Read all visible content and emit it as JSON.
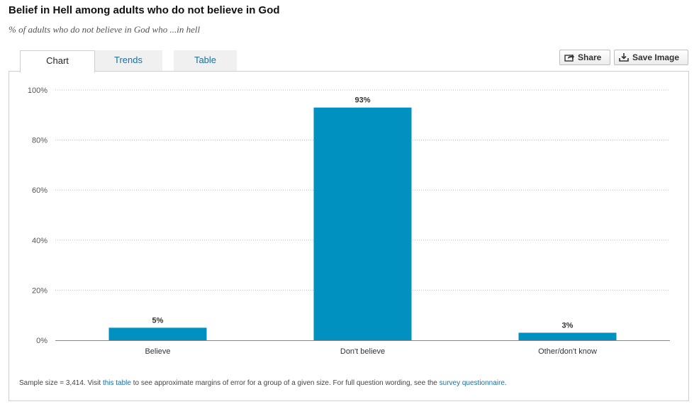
{
  "header": {
    "title": "Belief in Hell among adults who do not believe in God",
    "subtitle": "% of adults who do not believe in God who ...in hell"
  },
  "tabs": [
    {
      "label": "Chart"
    },
    {
      "label": "Trends"
    },
    {
      "label": "Table"
    }
  ],
  "toolbar": {
    "share_label": "Share",
    "save_label": "Save Image"
  },
  "chart_data": {
    "type": "bar",
    "categories": [
      "Believe",
      "Don't believe",
      "Other/don't know"
    ],
    "values": [
      5,
      93,
      3
    ],
    "value_labels": [
      "5%",
      "93%",
      "3%"
    ],
    "ylim": [
      0,
      100
    ],
    "yticks": [
      0,
      20,
      40,
      60,
      80,
      100
    ],
    "ytick_labels": [
      "0%",
      "20%",
      "40%",
      "60%",
      "80%",
      "100%"
    ],
    "grid": true,
    "bar_color": "#0091c1",
    "title": "",
    "xlabel": "",
    "ylabel": ""
  },
  "footnote": {
    "prefix": "Sample size = 3,414. Visit ",
    "link1": "this table",
    "middle": " to see approximate margins of error for a group of a given size. For full question wording, see the ",
    "link2": "survey questionnaire",
    "suffix": "."
  }
}
